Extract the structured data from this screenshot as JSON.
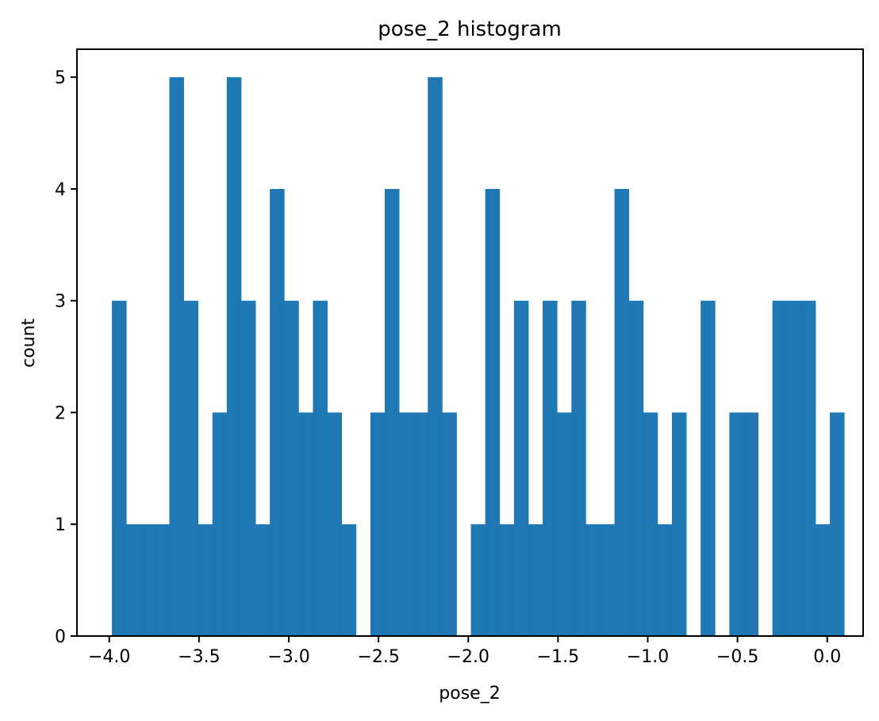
{
  "chart_data": {
    "type": "bar",
    "title": "pose_2 histogram",
    "xlabel": "pose_2",
    "ylabel": "count",
    "xlim": [
      -4.18,
      0.2
    ],
    "ylim": [
      0,
      5.25
    ],
    "grid": false,
    "bin_start": -3.9853,
    "bin_width": 0.08,
    "values": [
      3,
      1,
      1,
      1,
      5,
      3,
      1,
      2,
      5,
      3,
      1,
      4,
      3,
      2,
      3,
      2,
      1,
      0,
      2,
      4,
      2,
      2,
      5,
      2,
      0,
      1,
      4,
      1,
      3,
      1,
      3,
      2,
      3,
      1,
      1,
      4,
      3,
      2,
      1,
      2,
      0,
      3,
      0,
      2,
      2,
      0,
      3,
      3,
      3,
      1,
      2
    ],
    "x_ticks": [
      -4.0,
      -3.5,
      -3.0,
      -2.5,
      -2.0,
      -1.5,
      -1.0,
      -0.5,
      0.0
    ],
    "x_tick_labels": [
      "−4.0",
      "−3.5",
      "−3.0",
      "−2.5",
      "−2.0",
      "−1.5",
      "−1.0",
      "−0.5",
      "0.0"
    ],
    "y_ticks": [
      0,
      1,
      2,
      3,
      4,
      5
    ],
    "y_tick_labels": [
      "0",
      "1",
      "2",
      "3",
      "4",
      "5"
    ],
    "bar_color": "#1f77b4"
  }
}
